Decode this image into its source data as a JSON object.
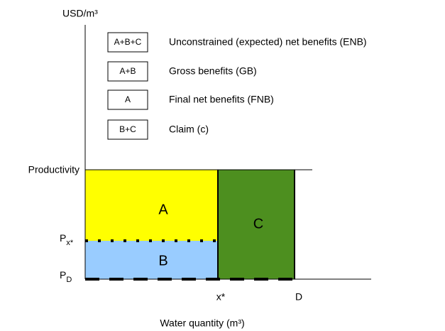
{
  "y_axis": {
    "title": "USD/m³",
    "labels": {
      "productivity": "Productivity",
      "px": {
        "main": "P",
        "sub": "x*"
      },
      "pd": {
        "main": "P",
        "sub": "D"
      }
    }
  },
  "x_axis": {
    "title": "Water quantity (m³)",
    "labels": [
      "x*",
      "D"
    ]
  },
  "legend": [
    {
      "key": "A+B+C",
      "text": "Unconstrained (expected) net benefits (ENB)"
    },
    {
      "key": "A+B",
      "text": "Gross benefits (GB)"
    },
    {
      "key": "A",
      "text": "Final net benefits (FNB)"
    },
    {
      "key": "B+C",
      "text": "Claim (c)"
    }
  ],
  "regions": [
    "A",
    "B",
    "C"
  ]
}
